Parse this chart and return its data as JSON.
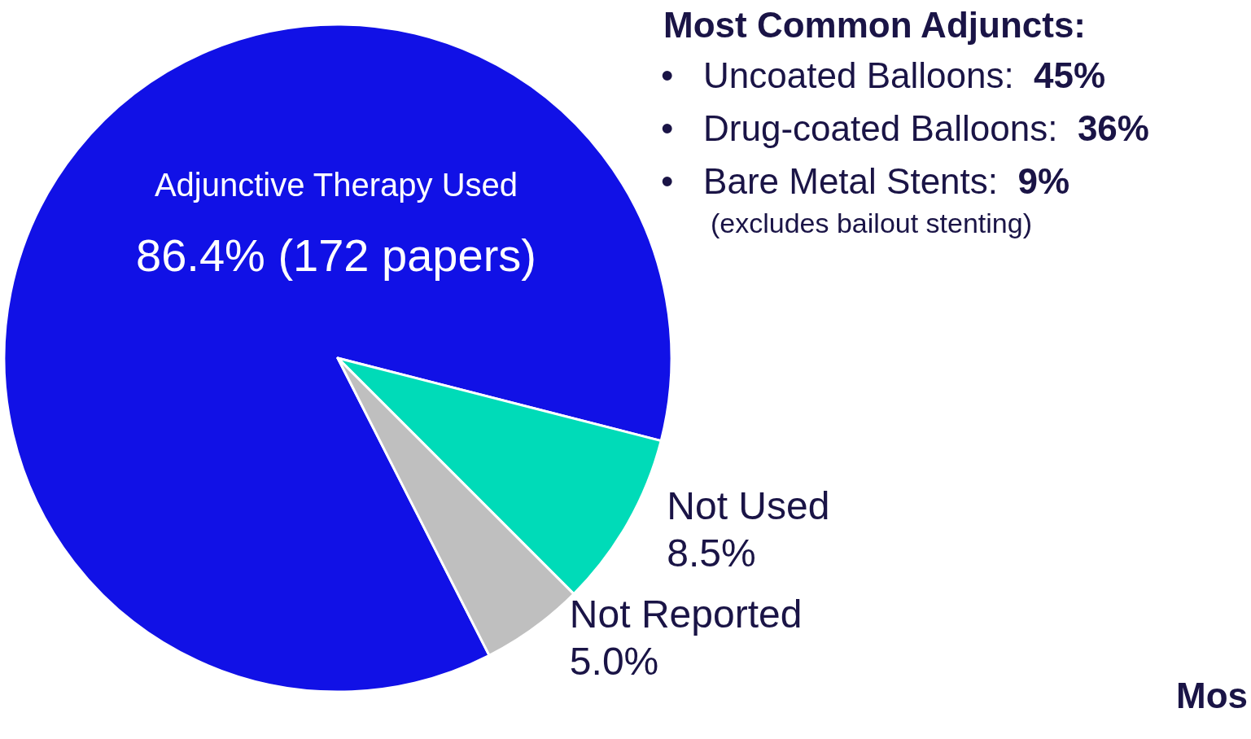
{
  "chart_data": {
    "type": "pie",
    "title": "Most Common Adjuncts:",
    "categories": [
      "Adjunctive Therapy Used",
      "Not Used",
      "Not Reported"
    ],
    "values": [
      86.4,
      8.5,
      5.0
    ],
    "colors": [
      "#1111e6",
      "#00dbb8",
      "#bfbfbf"
    ],
    "value_labels": [
      "86.4% (172 papers)",
      "8.5%",
      "5.0%"
    ],
    "annotations": [
      "•   Uncoated Balloons:  45%",
      "•   Drug-coated Balloons:  36%",
      "•   Bare Metal Stents:  9%",
      "(excludes bailout stenting)",
      "Mos"
    ],
    "legend": false
  }
}
